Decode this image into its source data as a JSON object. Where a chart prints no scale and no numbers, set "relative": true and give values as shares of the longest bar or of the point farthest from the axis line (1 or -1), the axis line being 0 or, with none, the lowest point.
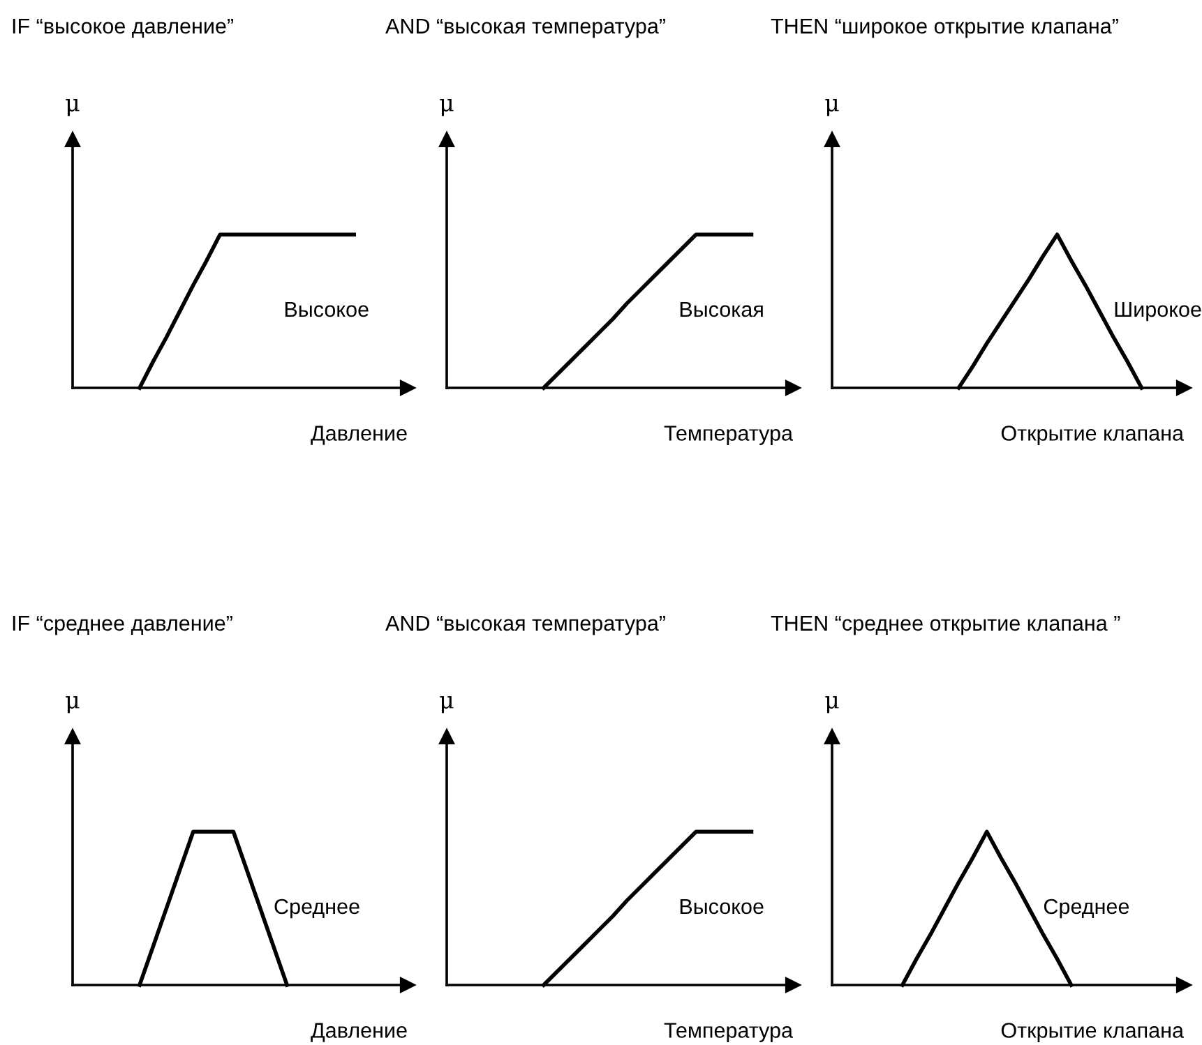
{
  "chart_data": [
    {
      "type": "line",
      "title": "IF “высокое давление”",
      "xlabel": "Давление",
      "ylabel": "μ",
      "relative": true,
      "legend": false,
      "marker": "none",
      "line_style": "solid",
      "categories": [
        null,
        null,
        null,
        null,
        null,
        null,
        null,
        null,
        null,
        null,
        null,
        null,
        null,
        null,
        null,
        null,
        null,
        null,
        null,
        null,
        null,
        null,
        null,
        null
      ],
      "series": [
        {
          "name": "Высокое",
          "color": "#000000",
          "values": [
            null,
            null,
            null,
            null,
            0,
            0.17,
            0.33,
            0.5,
            0.67,
            0.83,
            1,
            1,
            1,
            1,
            1,
            1,
            1,
            1,
            1,
            1,
            1,
            null,
            null,
            null
          ]
        }
      ]
    },
    {
      "type": "line",
      "title": "AND “высокая температура”",
      "xlabel": "Температура",
      "ylabel": "μ",
      "relative": true,
      "legend": false,
      "marker": "none",
      "line_style": "solid",
      "categories": [
        null,
        null,
        null,
        null,
        null,
        null,
        null,
        null,
        null,
        null,
        null,
        null,
        null,
        null,
        null,
        null,
        null,
        null,
        null,
        null,
        null,
        null,
        null,
        null
      ],
      "series": [
        {
          "name": "Высокая",
          "color": "#000000",
          "values": [
            null,
            null,
            null,
            null,
            null,
            null,
            0,
            0.09,
            0.18,
            0.27,
            0.36,
            0.45,
            0.55,
            0.64,
            0.73,
            0.82,
            0.91,
            1,
            1,
            1,
            1,
            1,
            null,
            null
          ]
        }
      ]
    },
    {
      "type": "line",
      "title": "THEN “широкое открытие клапана”",
      "xlabel": "Открытие клапана",
      "ylabel": "μ",
      "relative": true,
      "legend": false,
      "marker": "none",
      "line_style": "solid",
      "categories": [
        null,
        null,
        null,
        null,
        null,
        null,
        null,
        null,
        null,
        null,
        null,
        null,
        null,
        null,
        null,
        null,
        null,
        null,
        null,
        null,
        null,
        null,
        null,
        null
      ],
      "series": [
        {
          "name": "Широкое",
          "color": "#000000",
          "values": [
            null,
            null,
            null,
            null,
            null,
            null,
            null,
            null,
            0,
            0.14,
            0.29,
            0.43,
            0.57,
            0.71,
            0.86,
            1,
            0.83,
            0.67,
            0.5,
            0.33,
            0.17,
            0,
            null,
            null
          ]
        }
      ]
    },
    {
      "type": "line",
      "title": "IF “среднее давление”",
      "xlabel": "Давление",
      "ylabel": "μ",
      "relative": true,
      "legend": false,
      "marker": "none",
      "line_style": "solid",
      "categories": [
        null,
        null,
        null,
        null,
        null,
        null,
        null,
        null,
        null,
        null,
        null,
        null,
        null,
        null,
        null,
        null,
        null,
        null,
        null,
        null,
        null,
        null,
        null,
        null
      ],
      "series": [
        {
          "name": "Среднее",
          "color": "#000000",
          "values": [
            null,
            null,
            null,
            null,
            0,
            0.25,
            0.5,
            0.75,
            1,
            1,
            1,
            1,
            0.75,
            0.5,
            0.25,
            0,
            null,
            null,
            null,
            null,
            null,
            null,
            null,
            null
          ]
        }
      ]
    },
    {
      "type": "line",
      "title": "AND “высокая температура”",
      "xlabel": "Температура",
      "ylabel": "μ",
      "relative": true,
      "legend": false,
      "marker": "none",
      "line_style": "solid",
      "categories": [
        null,
        null,
        null,
        null,
        null,
        null,
        null,
        null,
        null,
        null,
        null,
        null,
        null,
        null,
        null,
        null,
        null,
        null,
        null,
        null,
        null,
        null,
        null,
        null
      ],
      "series": [
        {
          "name": "Высокое",
          "color": "#000000",
          "values": [
            null,
            null,
            null,
            null,
            null,
            null,
            0,
            0.09,
            0.18,
            0.27,
            0.36,
            0.45,
            0.55,
            0.64,
            0.73,
            0.82,
            0.91,
            1,
            1,
            1,
            1,
            1,
            null,
            null
          ]
        }
      ]
    },
    {
      "type": "line",
      "title": "THEN “среднее открытие клапана ”",
      "xlabel": "Открытие клапана",
      "ylabel": "μ",
      "relative": true,
      "legend": false,
      "marker": "none",
      "line_style": "solid",
      "categories": [
        null,
        null,
        null,
        null,
        null,
        null,
        null,
        null,
        null,
        null,
        null,
        null,
        null,
        null,
        null,
        null,
        null,
        null,
        null,
        null,
        null,
        null,
        null,
        null
      ],
      "series": [
        {
          "name": "Среднее",
          "color": "#000000",
          "values": [
            null,
            null,
            null,
            null,
            0,
            0.17,
            0.33,
            0.5,
            0.67,
            0.83,
            1,
            0.83,
            0.67,
            0.5,
            0.33,
            0.17,
            0,
            null,
            null,
            null,
            null,
            null,
            null,
            null
          ]
        }
      ]
    }
  ]
}
